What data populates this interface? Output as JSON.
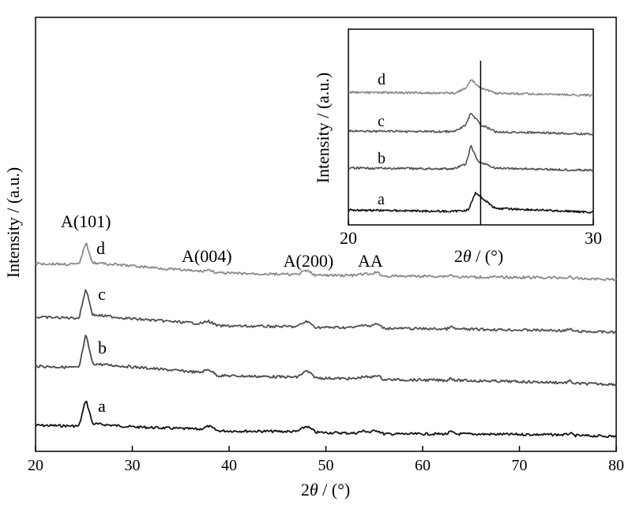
{
  "chart_data": [
    {
      "type": "line",
      "xlabel_parts": [
        "2",
        "θ",
        " / (°)"
      ],
      "ylabel": "Intensity / (a.u.)",
      "xlim": [
        20,
        80
      ],
      "xticks": [
        "20",
        "30",
        "40",
        "50",
        "60",
        "70",
        "80"
      ],
      "series": [
        {
          "name": "a",
          "color": "#111111",
          "points": [
            [
              20,
              539
            ],
            [
              24.5,
              540
            ],
            [
              25.2,
              506
            ],
            [
              25.9,
              537
            ],
            [
              30,
              541
            ],
            [
              37,
              544
            ],
            [
              37.9,
              540
            ],
            [
              38.8,
              546
            ],
            [
              47,
              547
            ],
            [
              48,
              540
            ],
            [
              49,
              548
            ],
            [
              53,
              549
            ],
            [
              54,
              546
            ],
            [
              54.6,
              548
            ],
            [
              55.2,
              545
            ],
            [
              56,
              550
            ],
            [
              62.5,
              550
            ],
            [
              62.9,
              547
            ],
            [
              63.4,
              550
            ],
            [
              74.8,
              551
            ],
            [
              75.2,
              549
            ],
            [
              75.7,
              552
            ],
            [
              80,
              553
            ]
          ]
        },
        {
          "name": "b",
          "color": "#4a4a4a",
          "points": [
            [
              20,
              464
            ],
            [
              24.5,
              466
            ],
            [
              25.2,
              424
            ],
            [
              25.9,
              461
            ],
            [
              30,
              465
            ],
            [
              37,
              472
            ],
            [
              37.9,
              468
            ],
            [
              38.8,
              476
            ],
            [
              47,
              478
            ],
            [
              48,
              470
            ],
            [
              49,
              479
            ],
            [
              53,
              480
            ],
            [
              54,
              477
            ],
            [
              54.6,
              479
            ],
            [
              55.2,
              475
            ],
            [
              56,
              481
            ],
            [
              62.5,
              482
            ],
            [
              62.9,
              479
            ],
            [
              63.4,
              482
            ],
            [
              74.8,
              485
            ],
            [
              75.2,
              483
            ],
            [
              75.7,
              486
            ],
            [
              80,
              487
            ]
          ]
        },
        {
          "name": "c",
          "color": "#505050",
          "points": [
            [
              20,
              402
            ],
            [
              24.5,
              403
            ],
            [
              25.2,
              365
            ],
            [
              25.9,
              399
            ],
            [
              30,
              404
            ],
            [
              37,
              410
            ],
            [
              37.9,
              407
            ],
            [
              38.8,
              413
            ],
            [
              47,
              414
            ],
            [
              48,
              407
            ],
            [
              49,
              415
            ],
            [
              53,
              415
            ],
            [
              54,
              411
            ],
            [
              54.6,
              414
            ],
            [
              55.2,
              410
            ],
            [
              56,
              416
            ],
            [
              62.5,
              417
            ],
            [
              62.9,
              414
            ],
            [
              63.4,
              417
            ],
            [
              74.8,
              419
            ],
            [
              75.2,
              417
            ],
            [
              75.7,
              420
            ],
            [
              80,
              421
            ]
          ]
        },
        {
          "name": "d",
          "color": "#8a8a8a",
          "points": [
            [
              20,
              334
            ],
            [
              24.5,
              335
            ],
            [
              25.2,
              307
            ],
            [
              25.9,
              333
            ],
            [
              30,
              337
            ],
            [
              37,
              344
            ],
            [
              37.9,
              342
            ],
            [
              38.8,
              346
            ],
            [
              47,
              348
            ],
            [
              48,
              343
            ],
            [
              49,
              349
            ],
            [
              53,
              349
            ],
            [
              54,
              347
            ],
            [
              54.6,
              348
            ],
            [
              55.2,
              345
            ],
            [
              56,
              350
            ],
            [
              62.5,
              350
            ],
            [
              62.9,
              348
            ],
            [
              63.4,
              351
            ],
            [
              74.8,
              352
            ],
            [
              75.2,
              351
            ],
            [
              75.7,
              353
            ],
            [
              80,
              354
            ]
          ]
        }
      ],
      "annotations": [
        {
          "text": "A(101)",
          "x": 25.2,
          "y": 288
        },
        {
          "text": "A(004)",
          "x": 37.7,
          "y": 332
        },
        {
          "text": "A(200)",
          "x": 48.2,
          "y": 338
        },
        {
          "text": "AA",
          "x": 54.6,
          "y": 338
        }
      ]
    },
    {
      "type": "line",
      "xlabel_parts": [
        "2",
        "θ",
        " / (°)"
      ],
      "ylabel": "Intensity / (a.u.)",
      "xlim": [
        20,
        30
      ],
      "xticks": [
        "20",
        "30"
      ],
      "vline_x": 25.4,
      "series": [
        {
          "name": "a",
          "color": "#111111",
          "points": [
            [
              20,
              266
            ],
            [
              24.3,
              268
            ],
            [
              24.9,
              266
            ],
            [
              25.2,
              244
            ],
            [
              25.5,
              252
            ],
            [
              26,
              264
            ],
            [
              30,
              269
            ]
          ]
        },
        {
          "name": "b",
          "color": "#505050",
          "points": [
            [
              20,
              213
            ],
            [
              24.3,
              214
            ],
            [
              24.8,
              208
            ],
            [
              25.0,
              185
            ],
            [
              25.3,
              205
            ],
            [
              26,
              213
            ],
            [
              30,
              216
            ]
          ]
        },
        {
          "name": "c",
          "color": "#555555",
          "points": [
            [
              20,
              166
            ],
            [
              24.3,
              167
            ],
            [
              24.8,
              158
            ],
            [
              25.0,
              143
            ],
            [
              25.4,
              158
            ],
            [
              26,
              167
            ],
            [
              30,
              170
            ]
          ]
        },
        {
          "name": "d",
          "color": "#8a8a8a",
          "points": [
            [
              20,
              117
            ],
            [
              24.3,
              118
            ],
            [
              24.8,
              112
            ],
            [
              25.0,
              101
            ],
            [
              25.4,
              111
            ],
            [
              26,
              118
            ],
            [
              30,
              121
            ]
          ]
        }
      ]
    }
  ]
}
